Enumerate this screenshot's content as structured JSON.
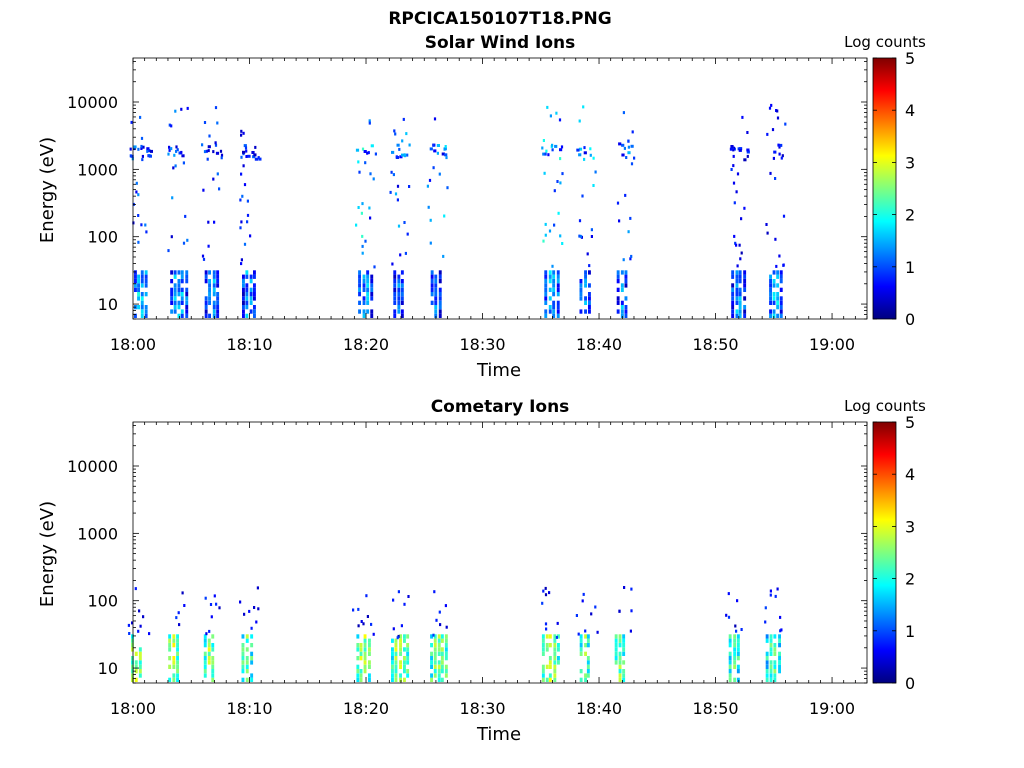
{
  "figure_title": "RPCICA150107T18.PNG",
  "colors": {
    "colormap": [
      "#00007f",
      "#0000ff",
      "#007fff",
      "#00ffff",
      "#7fff7f",
      "#ffff00",
      "#ff7f00",
      "#ff0000",
      "#7f0000"
    ]
  },
  "chart_data": [
    {
      "type": "heatmap",
      "title": "Solar Wind Ions",
      "xlabel": "Time",
      "ylabel": "Energy (eV)",
      "x_range": [
        "18:00",
        "19:03"
      ],
      "x_ticks": [
        "18:00",
        "18:10",
        "18:20",
        "18:30",
        "18:40",
        "18:50",
        "19:00"
      ],
      "y_scale": "log",
      "y_range": [
        6,
        45000
      ],
      "y_ticks": [
        10,
        100,
        1000,
        10000
      ],
      "colorbar": {
        "label": "Log counts",
        "range": [
          0,
          5
        ],
        "ticks": [
          "0",
          "1",
          "2",
          "3",
          "4",
          "5"
        ]
      },
      "bursts": [
        {
          "time_min": 0.5,
          "low_energy_level": 1.5,
          "high_energy_level": 1.2
        },
        {
          "time_min": 3.6,
          "low_energy_level": 1.3,
          "high_energy_level": 1.2
        },
        {
          "time_min": 6.6,
          "low_energy_level": 1.2,
          "high_energy_level": 1.0
        },
        {
          "time_min": 9.8,
          "low_energy_level": 1.2,
          "high_energy_level": 1.0
        },
        {
          "time_min": 19.8,
          "low_energy_level": 1.3,
          "high_energy_level": 1.8
        },
        {
          "time_min": 22.8,
          "low_energy_level": 1.2,
          "high_energy_level": 1.4
        },
        {
          "time_min": 26.0,
          "low_energy_level": 1.2,
          "high_energy_level": 1.5
        },
        {
          "time_min": 35.8,
          "low_energy_level": 1.4,
          "high_energy_level": 1.8
        },
        {
          "time_min": 38.8,
          "low_energy_level": 1.2,
          "high_energy_level": 1.6
        },
        {
          "time_min": 42.0,
          "low_energy_level": 1.2,
          "high_energy_level": 1.3
        },
        {
          "time_min": 51.8,
          "low_energy_level": 1.2,
          "high_energy_level": 0.8
        },
        {
          "time_min": 55.0,
          "low_energy_level": 1.4,
          "high_energy_level": 0.8
        }
      ]
    },
    {
      "type": "heatmap",
      "title": "Cometary Ions",
      "xlabel": "Time",
      "ylabel": "Energy (eV)",
      "x_range": [
        "18:00",
        "19:03"
      ],
      "x_ticks": [
        "18:00",
        "18:10",
        "18:20",
        "18:30",
        "18:40",
        "18:50",
        "19:00"
      ],
      "y_scale": "log",
      "y_range": [
        6,
        45000
      ],
      "y_ticks": [
        10,
        100,
        1000,
        10000
      ],
      "colorbar": {
        "label": "Log counts",
        "range": [
          0,
          5
        ],
        "ticks": [
          "0",
          "1",
          "2",
          "3",
          "4",
          "5"
        ]
      },
      "bursts": [
        {
          "time_min": 0.3,
          "low_energy_level": 2.8,
          "high_energy_level": 0.8
        },
        {
          "time_min": 3.5,
          "low_energy_level": 2.7,
          "high_energy_level": 0.8
        },
        {
          "time_min": 6.5,
          "low_energy_level": 2.6,
          "high_energy_level": 0.8
        },
        {
          "time_min": 9.8,
          "low_energy_level": 2.4,
          "high_energy_level": 0.8
        },
        {
          "time_min": 19.6,
          "low_energy_level": 2.6,
          "high_energy_level": 0.8
        },
        {
          "time_min": 22.6,
          "low_energy_level": 2.5,
          "high_energy_level": 0.8
        },
        {
          "time_min": 25.9,
          "low_energy_level": 2.5,
          "high_energy_level": 0.8
        },
        {
          "time_min": 35.5,
          "low_energy_level": 2.6,
          "high_energy_level": 0.8
        },
        {
          "time_min": 38.8,
          "low_energy_level": 2.5,
          "high_energy_level": 0.8
        },
        {
          "time_min": 41.8,
          "low_energy_level": 2.5,
          "high_energy_level": 0.8
        },
        {
          "time_min": 51.6,
          "low_energy_level": 2.3,
          "high_energy_level": 0.8
        },
        {
          "time_min": 54.8,
          "low_energy_level": 2.2,
          "high_energy_level": 0.8
        }
      ]
    }
  ]
}
